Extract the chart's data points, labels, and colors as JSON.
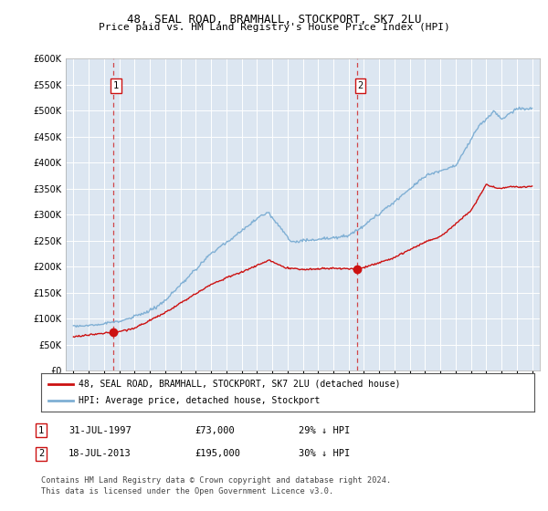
{
  "title1": "48, SEAL ROAD, BRAMHALL, STOCKPORT, SK7 2LU",
  "title2": "Price paid vs. HM Land Registry's House Price Index (HPI)",
  "legend_line1": "48, SEAL ROAD, BRAMHALL, STOCKPORT, SK7 2LU (detached house)",
  "legend_line2": "HPI: Average price, detached house, Stockport",
  "footnote": "Contains HM Land Registry data © Crown copyright and database right 2024.\nThis data is licensed under the Open Government Licence v3.0.",
  "sale1_date_x": 1997.58,
  "sale1_price": 73000,
  "sale2_date_x": 2013.55,
  "sale2_price": 195000,
  "sale1_text": "31-JUL-1997",
  "sale1_amount": "£73,000",
  "sale1_hpi": "29% ↓ HPI",
  "sale2_text": "18-JUL-2013",
  "sale2_amount": "£195,000",
  "sale2_hpi": "30% ↓ HPI",
  "ylim": [
    0,
    600000
  ],
  "xlim": [
    1994.5,
    2025.5
  ],
  "hpi_color": "#7fafd4",
  "price_color": "#cc1111",
  "bg_color": "#dce6f1",
  "plot_bg": "#dce6f1"
}
